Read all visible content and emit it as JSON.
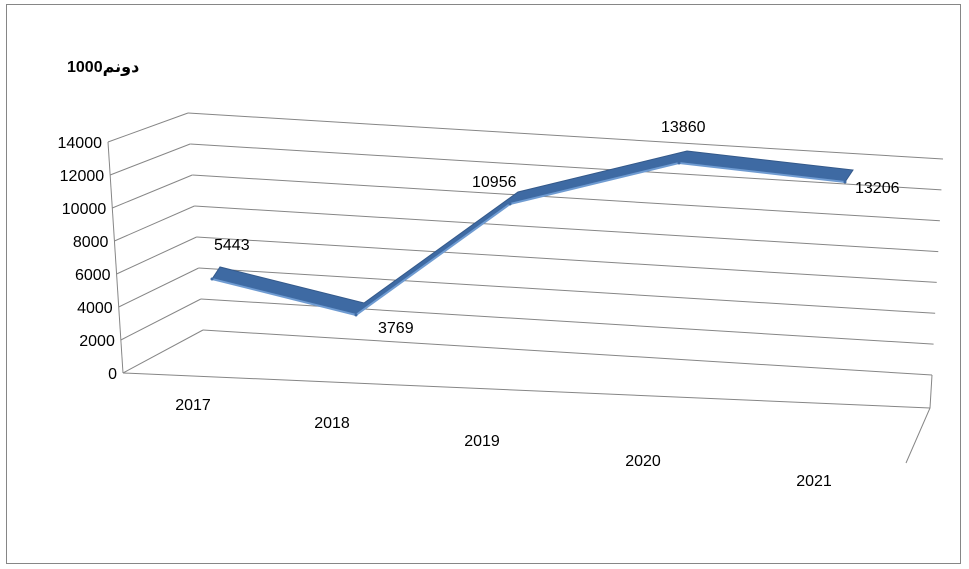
{
  "chart_data": {
    "type": "line",
    "title": "",
    "unit_label": "1000دونم",
    "categories": [
      "2017",
      "2018",
      "2019",
      "2020",
      "2021"
    ],
    "series": [
      {
        "values": [
          5443,
          3769,
          10956,
          13860,
          13206
        ],
        "color": "#3E6AA3"
      }
    ],
    "data_labels": [
      "5443",
      "3769",
      "10956",
      "13860",
      "13206"
    ],
    "y_ticks": [
      "0",
      "2000",
      "4000",
      "6000",
      "8000",
      "10000",
      "12000",
      "14000"
    ],
    "ylim": [
      0,
      14000
    ],
    "grid": true,
    "style": "3d-line"
  }
}
